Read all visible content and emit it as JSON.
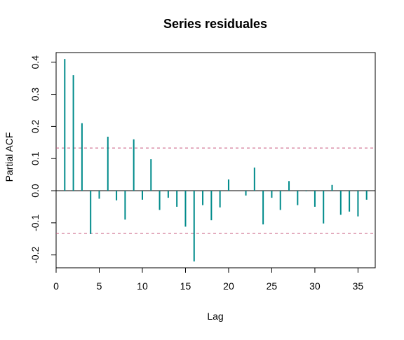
{
  "chart_data": {
    "type": "bar",
    "subtype": "partial-acf",
    "title": "Series  residuales",
    "xlabel": "Lag",
    "ylabel": "Partial ACF",
    "xlim": [
      0,
      37
    ],
    "ylim": [
      -0.24,
      0.43
    ],
    "x_ticks": [
      0,
      5,
      10,
      15,
      20,
      25,
      30,
      35
    ],
    "y_ticks": [
      -0.2,
      -0.1,
      0.0,
      0.1,
      0.2,
      0.3,
      0.4
    ],
    "y_tick_labels": [
      "-0.2",
      "-0.1",
      "0.0",
      "0.1",
      "0.2",
      "0.3",
      "0.4"
    ],
    "x": [
      1,
      2,
      3,
      4,
      5,
      6,
      7,
      8,
      9,
      10,
      11,
      12,
      13,
      14,
      15,
      16,
      17,
      18,
      19,
      20,
      21,
      22,
      23,
      24,
      25,
      26,
      27,
      28,
      29,
      30,
      31,
      32,
      33,
      34,
      35,
      36
    ],
    "values": [
      0.41,
      0.36,
      0.21,
      -0.135,
      -0.025,
      0.168,
      -0.03,
      -0.09,
      0.16,
      -0.028,
      0.098,
      -0.06,
      -0.022,
      -0.05,
      -0.112,
      -0.22,
      -0.045,
      -0.092,
      -0.052,
      0.035,
      0.0,
      -0.015,
      0.072,
      -0.105,
      -0.022,
      -0.06,
      0.03,
      -0.045,
      -0.002,
      -0.05,
      -0.102,
      0.018,
      -0.075,
      -0.065,
      -0.08,
      -0.028
    ],
    "confidence_bound": 0.133,
    "grid": false,
    "colors": {
      "bars": "#008B8B",
      "confidence": "#C7587E",
      "axis": "#000000"
    }
  }
}
